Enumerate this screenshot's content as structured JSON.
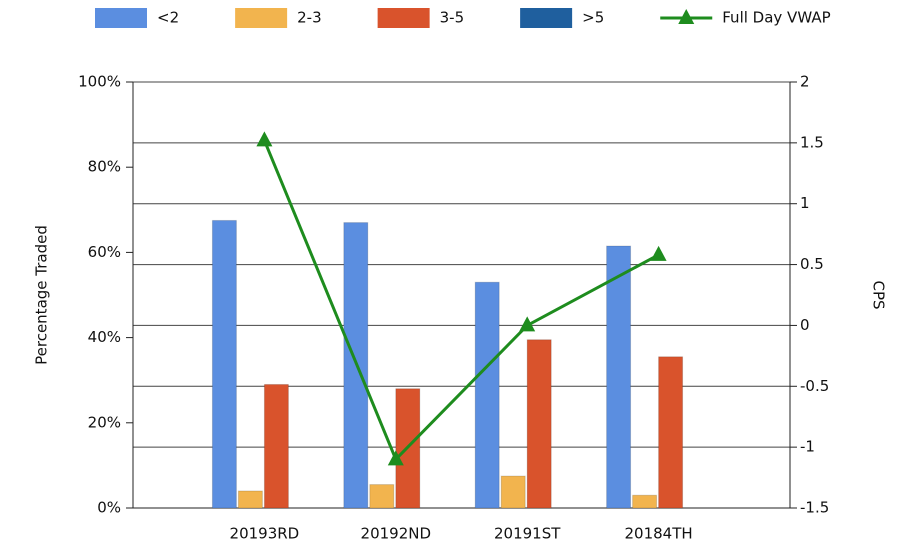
{
  "chart_data": {
    "type": "bar",
    "categories": [
      "20193RD",
      "20192ND",
      "20191ST",
      "20184TH"
    ],
    "series": [
      {
        "name": "<2",
        "color": "#5b8ee0",
        "values": [
          67.5,
          67,
          53,
          61.5
        ]
      },
      {
        "name": "2-3",
        "color": "#f2b44e",
        "values": [
          4,
          5.5,
          7.5,
          3
        ]
      },
      {
        "name": "3-5",
        "color": "#d9532c",
        "values": [
          29,
          28,
          39.5,
          35.5
        ]
      },
      {
        "name": ">5",
        "color": "#1f5f9e",
        "values": [
          0,
          0,
          0,
          0
        ]
      },
      {
        "name": "Full Day VWAP",
        "color": "#1e8c1e",
        "type": "line",
        "axis": "y2",
        "values": [
          1.52,
          -1.1,
          0,
          0.58
        ]
      }
    ],
    "ylabel": "Percentage Traded",
    "y2label": "CPS",
    "ylim": [
      0,
      100
    ],
    "yticks": [
      {
        "value": 0,
        "label": "0%"
      },
      {
        "value": 20,
        "label": "20%"
      },
      {
        "value": 40,
        "label": "40%"
      },
      {
        "value": 60,
        "label": "60%"
      },
      {
        "value": 80,
        "label": "80%"
      },
      {
        "value": 100,
        "label": "100%"
      }
    ],
    "y2lim": [
      -1.5,
      2
    ],
    "y2ticks": [
      -1.5,
      -1,
      -0.5,
      0,
      0.5,
      1,
      1.5,
      2
    ],
    "grid": true,
    "legend": "top"
  }
}
